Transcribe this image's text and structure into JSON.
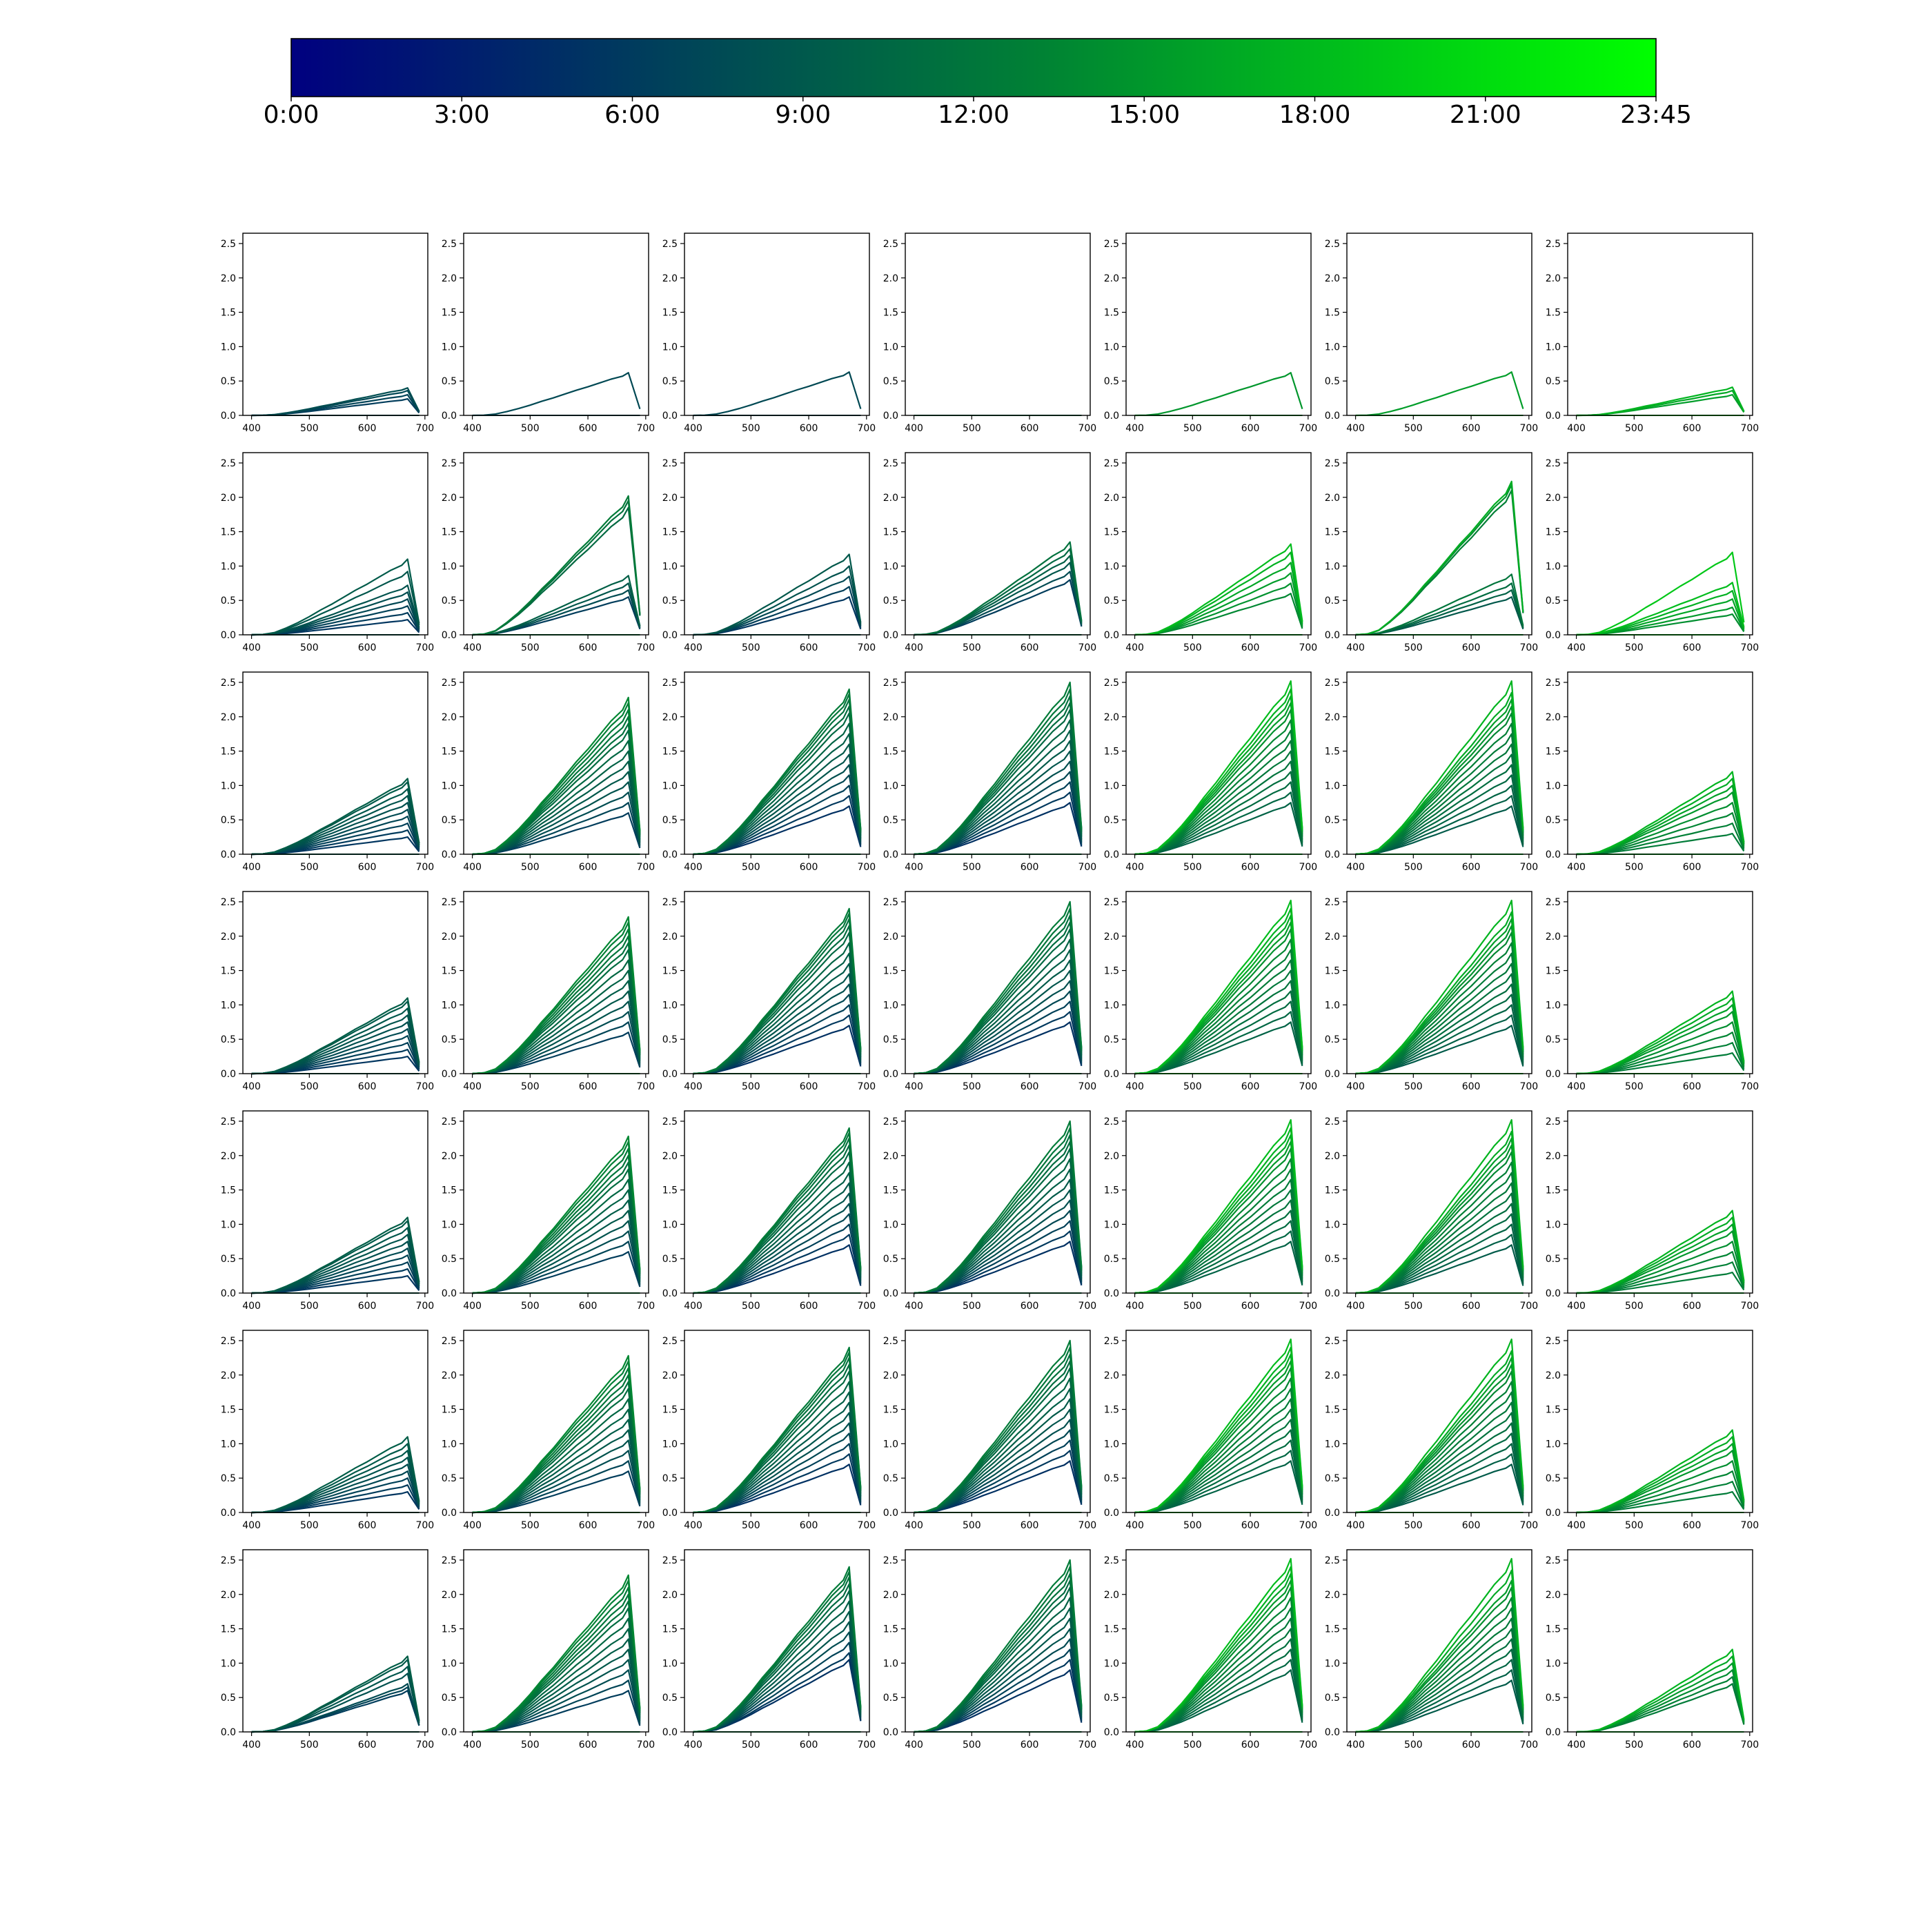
{
  "chart_data": {
    "type": "line",
    "layout": "grid of 7 columns x 7 rows of small line charts with a shared horizontal colorbar on top",
    "colorbar": {
      "colormap": "dark navy to bright green",
      "colors": [
        "#000080",
        "#00504e",
        "#008234",
        "#00ff00"
      ],
      "tick_labels": [
        "0:00",
        "3:00",
        "6:00",
        "9:00",
        "12:00",
        "15:00",
        "18:00",
        "21:00",
        "23:45"
      ]
    },
    "x_ticks": [
      400,
      500,
      600,
      700
    ],
    "xlim": [
      385,
      705
    ],
    "y_ticks": [
      "0.0",
      "0.5",
      "1.0",
      "1.5",
      "2.0",
      "2.5"
    ],
    "ylim": [
      0,
      2.65
    ],
    "curve_shape_x": [
      400,
      420,
      440,
      460,
      480,
      500,
      520,
      540,
      560,
      580,
      600,
      620,
      640,
      660,
      670,
      690
    ],
    "curve_shape_y": [
      0,
      0.005,
      0.03,
      0.09,
      0.16,
      0.24,
      0.33,
      0.41,
      0.5,
      0.59,
      0.67,
      0.76,
      0.85,
      0.92,
      1.0,
      0.15
    ],
    "panels": [
      [
        {
          "colors": [
            0.25,
            0.32
          ],
          "peaks": [
            0.24,
            0.3,
            0.36,
            0.4
          ]
        },
        {
          "colors": [
            0.3,
            0.3
          ],
          "peaks": [
            0.62
          ]
        },
        {
          "colors": [
            0.3,
            0.3
          ],
          "peaks": [
            0.63
          ]
        },
        {
          "colors": [
            0.5,
            0.5
          ],
          "peaks": []
        },
        {
          "colors": [
            0.72,
            0.72
          ],
          "peaks": [
            0.62
          ]
        },
        {
          "colors": [
            0.74,
            0.74
          ],
          "peaks": [
            0.63
          ]
        },
        {
          "colors": [
            0.74,
            0.8
          ],
          "peaks": [
            0.3,
            0.36,
            0.41
          ]
        }
      ],
      [
        {
          "colors": [
            0.22,
            0.4
          ],
          "peaks": [
            0.22,
            0.32,
            0.42,
            0.52,
            0.62,
            0.72,
            0.92,
            1.1
          ]
        },
        {
          "colors": [
            0.25,
            0.62
          ],
          "peaks": [
            0.55,
            0.65,
            0.75,
            0.86,
            1.85,
            1.95,
            2.02
          ]
        },
        {
          "colors": [
            0.22,
            0.38
          ],
          "peaks": [
            0.55,
            0.7,
            0.85,
            1.0,
            1.17
          ]
        },
        {
          "colors": [
            0.25,
            0.55
          ],
          "peaks": [
            0.8,
            0.92,
            1.05,
            1.15,
            1.25,
            1.35
          ]
        },
        {
          "colors": [
            0.68,
            0.82
          ],
          "peaks": [
            0.6,
            0.75,
            0.9,
            1.05,
            1.2,
            1.32
          ]
        },
        {
          "colors": [
            0.38,
            0.78
          ],
          "peaks": [
            0.55,
            0.65,
            0.75,
            0.88,
            2.1,
            2.18,
            2.23
          ]
        },
        {
          "colors": [
            0.7,
            0.85
          ],
          "peaks": [
            0.3,
            0.4,
            0.52,
            0.64,
            0.76,
            1.2
          ]
        }
      ],
      [
        {
          "colors": [
            0.22,
            0.42
          ],
          "peaks": [
            0.25,
            0.35,
            0.45,
            0.55,
            0.65,
            0.75,
            0.85,
            0.95,
            1.05,
            1.1
          ]
        },
        {
          "colors": [
            0.25,
            0.68
          ],
          "peaks": [
            0.6,
            0.75,
            0.9,
            1.05,
            1.2,
            1.35,
            1.5,
            1.65,
            1.8,
            1.9,
            2.0,
            2.1,
            2.2,
            2.28
          ]
        },
        {
          "colors": [
            0.2,
            0.62
          ],
          "peaks": [
            0.7,
            0.85,
            1.0,
            1.15,
            1.3,
            1.45,
            1.6,
            1.75,
            1.9,
            2.05,
            2.15,
            2.25,
            2.33,
            2.4
          ]
        },
        {
          "colors": [
            0.2,
            0.62
          ],
          "peaks": [
            0.75,
            0.9,
            1.05,
            1.2,
            1.35,
            1.5,
            1.65,
            1.8,
            1.95,
            2.1,
            2.2,
            2.3,
            2.4,
            2.5
          ]
        },
        {
          "colors": [
            0.45,
            0.82
          ],
          "peaks": [
            0.75,
            0.9,
            1.05,
            1.2,
            1.35,
            1.5,
            1.65,
            1.8,
            1.95,
            2.1,
            2.2,
            2.3,
            2.4,
            2.52
          ]
        },
        {
          "colors": [
            0.4,
            0.8
          ],
          "peaks": [
            0.7,
            0.85,
            1.0,
            1.15,
            1.3,
            1.45,
            1.6,
            1.75,
            1.9,
            2.05,
            2.15,
            2.25,
            2.35,
            2.52
          ]
        },
        {
          "colors": [
            0.62,
            0.8
          ],
          "peaks": [
            0.3,
            0.45,
            0.6,
            0.75,
            0.9,
            1.0,
            1.1,
            1.2
          ]
        }
      ],
      [
        {
          "colors": [
            0.22,
            0.42
          ],
          "peaks": [
            0.25,
            0.35,
            0.45,
            0.55,
            0.65,
            0.75,
            0.85,
            0.95,
            1.05,
            1.1
          ]
        },
        {
          "colors": [
            0.25,
            0.68
          ],
          "peaks": [
            0.6,
            0.75,
            0.9,
            1.05,
            1.2,
            1.35,
            1.5,
            1.65,
            1.8,
            1.9,
            2.0,
            2.1,
            2.2,
            2.28
          ]
        },
        {
          "colors": [
            0.2,
            0.62
          ],
          "peaks": [
            0.7,
            0.85,
            1.0,
            1.15,
            1.3,
            1.45,
            1.6,
            1.75,
            1.9,
            2.05,
            2.15,
            2.25,
            2.33,
            2.4
          ]
        },
        {
          "colors": [
            0.2,
            0.62
          ],
          "peaks": [
            0.75,
            0.9,
            1.05,
            1.2,
            1.35,
            1.5,
            1.65,
            1.8,
            1.95,
            2.1,
            2.2,
            2.3,
            2.4,
            2.5
          ]
        },
        {
          "colors": [
            0.45,
            0.82
          ],
          "peaks": [
            0.75,
            0.9,
            1.05,
            1.2,
            1.35,
            1.5,
            1.65,
            1.8,
            1.95,
            2.1,
            2.2,
            2.3,
            2.4,
            2.52
          ]
        },
        {
          "colors": [
            0.4,
            0.8
          ],
          "peaks": [
            0.7,
            0.85,
            1.0,
            1.15,
            1.3,
            1.45,
            1.6,
            1.75,
            1.9,
            2.05,
            2.15,
            2.25,
            2.35,
            2.52
          ]
        },
        {
          "colors": [
            0.62,
            0.8
          ],
          "peaks": [
            0.3,
            0.45,
            0.6,
            0.75,
            0.9,
            1.0,
            1.1,
            1.2
          ]
        }
      ],
      [
        {
          "colors": [
            0.22,
            0.42
          ],
          "peaks": [
            0.25,
            0.35,
            0.45,
            0.55,
            0.65,
            0.75,
            0.85,
            0.95,
            1.05,
            1.1
          ]
        },
        {
          "colors": [
            0.25,
            0.68
          ],
          "peaks": [
            0.6,
            0.75,
            0.9,
            1.05,
            1.2,
            1.35,
            1.5,
            1.65,
            1.8,
            1.9,
            2.0,
            2.1,
            2.2,
            2.28
          ]
        },
        {
          "colors": [
            0.2,
            0.62
          ],
          "peaks": [
            0.7,
            0.85,
            1.0,
            1.15,
            1.3,
            1.45,
            1.6,
            1.75,
            1.9,
            2.05,
            2.15,
            2.25,
            2.33,
            2.4
          ]
        },
        {
          "colors": [
            0.2,
            0.62
          ],
          "peaks": [
            0.75,
            0.9,
            1.05,
            1.2,
            1.35,
            1.5,
            1.65,
            1.8,
            1.95,
            2.1,
            2.2,
            2.3,
            2.4,
            2.5
          ]
        },
        {
          "colors": [
            0.45,
            0.82
          ],
          "peaks": [
            0.75,
            0.9,
            1.05,
            1.2,
            1.35,
            1.5,
            1.65,
            1.8,
            1.95,
            2.1,
            2.2,
            2.3,
            2.4,
            2.52
          ]
        },
        {
          "colors": [
            0.4,
            0.8
          ],
          "peaks": [
            0.7,
            0.85,
            1.0,
            1.15,
            1.3,
            1.45,
            1.6,
            1.75,
            1.9,
            2.05,
            2.15,
            2.25,
            2.35,
            2.52
          ]
        },
        {
          "colors": [
            0.62,
            0.8
          ],
          "peaks": [
            0.3,
            0.45,
            0.6,
            0.75,
            0.9,
            1.0,
            1.1,
            1.2
          ]
        }
      ],
      [
        {
          "colors": [
            0.22,
            0.42
          ],
          "peaks": [
            0.3,
            0.4,
            0.5,
            0.6,
            0.7,
            0.8,
            0.9,
            1.0,
            1.1
          ]
        },
        {
          "colors": [
            0.25,
            0.68
          ],
          "peaks": [
            0.6,
            0.75,
            0.9,
            1.05,
            1.2,
            1.35,
            1.5,
            1.65,
            1.8,
            1.9,
            2.0,
            2.1,
            2.2,
            2.28
          ]
        },
        {
          "colors": [
            0.2,
            0.62
          ],
          "peaks": [
            0.7,
            0.85,
            1.0,
            1.15,
            1.3,
            1.45,
            1.6,
            1.75,
            1.9,
            2.05,
            2.15,
            2.25,
            2.33,
            2.4
          ]
        },
        {
          "colors": [
            0.2,
            0.62
          ],
          "peaks": [
            0.75,
            0.9,
            1.05,
            1.2,
            1.35,
            1.5,
            1.65,
            1.8,
            1.95,
            2.1,
            2.2,
            2.3,
            2.4,
            2.5
          ]
        },
        {
          "colors": [
            0.45,
            0.82
          ],
          "peaks": [
            0.75,
            0.9,
            1.05,
            1.2,
            1.35,
            1.5,
            1.65,
            1.8,
            1.95,
            2.1,
            2.2,
            2.3,
            2.4,
            2.52
          ]
        },
        {
          "colors": [
            0.4,
            0.8
          ],
          "peaks": [
            0.7,
            0.85,
            1.0,
            1.15,
            1.3,
            1.45,
            1.6,
            1.75,
            1.9,
            2.05,
            2.15,
            2.25,
            2.35,
            2.52
          ]
        },
        {
          "colors": [
            0.62,
            0.8
          ],
          "peaks": [
            0.3,
            0.45,
            0.6,
            0.75,
            0.9,
            1.0,
            1.1,
            1.2
          ]
        }
      ],
      [
        {
          "colors": [
            0.25,
            0.42
          ],
          "peaks": [
            0.6,
            0.65,
            0.7,
            0.85,
            0.95,
            1.05,
            1.1
          ]
        },
        {
          "colors": [
            0.25,
            0.68
          ],
          "peaks": [
            0.6,
            0.75,
            0.9,
            1.05,
            1.2,
            1.35,
            1.5,
            1.65,
            1.8,
            1.9,
            2.0,
            2.1,
            2.2,
            2.28
          ]
        },
        {
          "colors": [
            0.2,
            0.62
          ],
          "peaks": [
            1.05,
            1.15,
            1.3,
            1.45,
            1.6,
            1.75,
            1.9,
            2.05,
            2.15,
            2.25,
            2.33,
            2.4
          ]
        },
        {
          "colors": [
            0.2,
            0.62
          ],
          "peaks": [
            0.9,
            1.05,
            1.2,
            1.35,
            1.5,
            1.65,
            1.8,
            1.95,
            2.1,
            2.2,
            2.3,
            2.4,
            2.5
          ]
        },
        {
          "colors": [
            0.45,
            0.82
          ],
          "peaks": [
            0.9,
            1.05,
            1.2,
            1.35,
            1.5,
            1.65,
            1.8,
            1.95,
            2.1,
            2.2,
            2.3,
            2.4,
            2.52
          ]
        },
        {
          "colors": [
            0.4,
            0.8
          ],
          "peaks": [
            0.75,
            0.9,
            1.05,
            1.2,
            1.35,
            1.5,
            1.65,
            1.8,
            1.95,
            2.1,
            2.2,
            2.35,
            2.52
          ]
        },
        {
          "colors": [
            0.62,
            0.8
          ],
          "peaks": [
            0.7,
            0.8,
            0.9,
            1.0,
            1.1,
            1.2
          ]
        }
      ]
    ]
  }
}
